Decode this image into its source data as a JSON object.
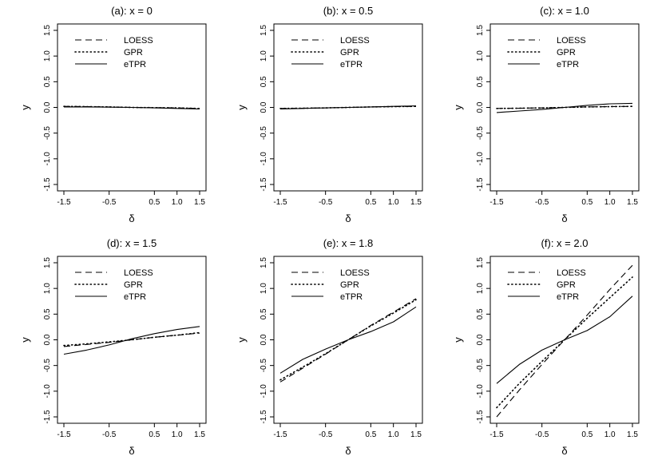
{
  "chart_data": [
    {
      "type": "line",
      "title": "(a): x = 0",
      "xlabel": "δ",
      "ylabel": "y",
      "xlim": [
        -1.5,
        1.5
      ],
      "ylim": [
        -1.5,
        1.5
      ],
      "x_ticks": [
        "-1.5",
        "-0.5",
        "0.5",
        "1.0",
        "1.5"
      ],
      "y_ticks": [
        "-1.5",
        "-1.0",
        "-0.5",
        "0.0",
        "0.5",
        "1.0",
        "1.5"
      ],
      "legend": [
        "LOESS",
        "GPR",
        "eTPR"
      ],
      "series": [
        {
          "name": "LOESS",
          "x": [
            -1.5,
            -1.0,
            -0.5,
            0.0,
            0.5,
            1.0,
            1.5
          ],
          "y": [
            0.02,
            0.015,
            0.01,
            0.0,
            -0.005,
            -0.01,
            -0.02
          ]
        },
        {
          "name": "GPR",
          "x": [
            -1.5,
            -1.0,
            -0.5,
            0.0,
            0.5,
            1.0,
            1.5
          ],
          "y": [
            0.02,
            0.015,
            0.01,
            0.0,
            -0.005,
            -0.01,
            -0.02
          ]
        },
        {
          "name": "eTPR",
          "x": [
            -1.5,
            -1.0,
            -0.5,
            0.0,
            0.5,
            1.0,
            1.5
          ],
          "y": [
            0.01,
            0.01,
            0.005,
            0.0,
            -0.01,
            -0.02,
            -0.03
          ]
        }
      ]
    },
    {
      "type": "line",
      "title": "(b): x = 0.5",
      "xlabel": "δ",
      "ylabel": "y",
      "xlim": [
        -1.5,
        1.5
      ],
      "ylim": [
        -1.5,
        1.5
      ],
      "x_ticks": [
        "-1.5",
        "-0.5",
        "0.5",
        "1.0",
        "1.5"
      ],
      "y_ticks": [
        "-1.5",
        "-1.0",
        "-0.5",
        "0.0",
        "0.5",
        "1.0",
        "1.5"
      ],
      "legend": [
        "LOESS",
        "GPR",
        "eTPR"
      ],
      "series": [
        {
          "name": "LOESS",
          "x": [
            -1.5,
            -1.0,
            -0.5,
            0.0,
            0.5,
            1.0,
            1.5
          ],
          "y": [
            -0.02,
            -0.015,
            -0.01,
            0.0,
            0.01,
            0.015,
            0.02
          ]
        },
        {
          "name": "GPR",
          "x": [
            -1.5,
            -1.0,
            -0.5,
            0.0,
            0.5,
            1.0,
            1.5
          ],
          "y": [
            -0.02,
            -0.015,
            -0.01,
            0.0,
            0.01,
            0.015,
            0.02
          ]
        },
        {
          "name": "eTPR",
          "x": [
            -1.5,
            -1.0,
            -0.5,
            0.0,
            0.5,
            1.0,
            1.5
          ],
          "y": [
            -0.03,
            -0.02,
            -0.01,
            0.0,
            0.01,
            0.02,
            0.03
          ]
        }
      ]
    },
    {
      "type": "line",
      "title": "(c): x = 1.0",
      "xlabel": "δ",
      "ylabel": "y",
      "xlim": [
        -1.5,
        1.5
      ],
      "ylim": [
        -1.5,
        1.5
      ],
      "x_ticks": [
        "-1.5",
        "-0.5",
        "0.5",
        "1.0",
        "1.5"
      ],
      "y_ticks": [
        "-1.5",
        "-1.0",
        "-0.5",
        "0.0",
        "0.5",
        "1.0",
        "1.5"
      ],
      "legend": [
        "LOESS",
        "GPR",
        "eTPR"
      ],
      "series": [
        {
          "name": "LOESS",
          "x": [
            -1.5,
            -1.0,
            -0.5,
            0.0,
            0.5,
            1.0,
            1.5
          ],
          "y": [
            -0.02,
            -0.015,
            -0.01,
            0.0,
            0.01,
            0.015,
            0.02
          ]
        },
        {
          "name": "GPR",
          "x": [
            -1.5,
            -1.0,
            -0.5,
            0.0,
            0.5,
            1.0,
            1.5
          ],
          "y": [
            -0.02,
            -0.015,
            -0.01,
            0.0,
            0.01,
            0.015,
            0.02
          ]
        },
        {
          "name": "eTPR",
          "x": [
            -1.5,
            -1.0,
            -0.5,
            0.0,
            0.5,
            1.0,
            1.5
          ],
          "y": [
            -0.1,
            -0.07,
            -0.04,
            0.0,
            0.04,
            0.07,
            0.08
          ]
        }
      ]
    },
    {
      "type": "line",
      "title": "(d): x = 1.5",
      "xlabel": "δ",
      "ylabel": "y",
      "xlim": [
        -1.5,
        1.5
      ],
      "ylim": [
        -1.5,
        1.5
      ],
      "x_ticks": [
        "-1.5",
        "-0.5",
        "0.5",
        "1.0",
        "1.5"
      ],
      "y_ticks": [
        "-1.5",
        "-1.0",
        "-0.5",
        "0.0",
        "0.5",
        "1.0",
        "1.5"
      ],
      "legend": [
        "LOESS",
        "GPR",
        "eTPR"
      ],
      "series": [
        {
          "name": "LOESS",
          "x": [
            -1.5,
            -1.0,
            -0.5,
            0.0,
            0.5,
            1.0,
            1.5
          ],
          "y": [
            -0.13,
            -0.09,
            -0.05,
            0.0,
            0.05,
            0.09,
            0.13
          ]
        },
        {
          "name": "GPR",
          "x": [
            -1.5,
            -1.0,
            -0.5,
            0.0,
            0.5,
            1.0,
            1.5
          ],
          "y": [
            -0.11,
            -0.08,
            -0.04,
            0.0,
            0.05,
            0.09,
            0.14
          ]
        },
        {
          "name": "eTPR",
          "x": [
            -1.5,
            -1.0,
            -0.5,
            0.0,
            0.5,
            1.0,
            1.5
          ],
          "y": [
            -0.28,
            -0.2,
            -0.1,
            0.02,
            0.12,
            0.2,
            0.26
          ]
        }
      ]
    },
    {
      "type": "line",
      "title": "(e): x = 1.8",
      "xlabel": "δ",
      "ylabel": "y",
      "xlim": [
        -1.5,
        1.5
      ],
      "ylim": [
        -1.5,
        1.5
      ],
      "x_ticks": [
        "-1.5",
        "-0.5",
        "0.5",
        "1.0",
        "1.5"
      ],
      "y_ticks": [
        "-1.5",
        "-1.0",
        "-0.5",
        "0.0",
        "0.5",
        "1.0",
        "1.5"
      ],
      "legend": [
        "LOESS",
        "GPR",
        "eTPR"
      ],
      "series": [
        {
          "name": "LOESS",
          "x": [
            -1.5,
            -1.0,
            -0.5,
            0.0,
            0.5,
            1.0,
            1.5
          ],
          "y": [
            -0.82,
            -0.55,
            -0.28,
            0.0,
            0.28,
            0.54,
            0.8
          ]
        },
        {
          "name": "GPR",
          "x": [
            -1.5,
            -1.0,
            -0.5,
            0.0,
            0.5,
            1.0,
            1.5
          ],
          "y": [
            -0.78,
            -0.53,
            -0.27,
            0.0,
            0.27,
            0.52,
            0.78
          ]
        },
        {
          "name": "eTPR",
          "x": [
            -1.5,
            -1.0,
            -0.5,
            0.0,
            0.5,
            1.0,
            1.5
          ],
          "y": [
            -0.65,
            -0.38,
            -0.18,
            0.0,
            0.16,
            0.35,
            0.64
          ]
        }
      ]
    },
    {
      "type": "line",
      "title": "(f): x = 2.0",
      "xlabel": "δ",
      "ylabel": "y",
      "xlim": [
        -1.5,
        1.5
      ],
      "ylim": [
        -1.5,
        1.5
      ],
      "x_ticks": [
        "-1.5",
        "-0.5",
        "0.5",
        "1.0",
        "1.5"
      ],
      "y_ticks": [
        "-1.5",
        "-1.0",
        "-0.5",
        "0.0",
        "0.5",
        "1.0",
        "1.5"
      ],
      "legend": [
        "LOESS",
        "GPR",
        "eTPR"
      ],
      "series": [
        {
          "name": "LOESS",
          "x": [
            -1.5,
            -1.0,
            -0.5,
            0.0,
            0.5,
            1.0,
            1.5
          ],
          "y": [
            -1.5,
            -0.98,
            -0.48,
            0.0,
            0.48,
            0.98,
            1.45
          ]
        },
        {
          "name": "GPR",
          "x": [
            -1.5,
            -1.0,
            -0.5,
            0.0,
            0.5,
            1.0,
            1.5
          ],
          "y": [
            -1.32,
            -0.85,
            -0.42,
            0.0,
            0.42,
            0.82,
            1.22
          ]
        },
        {
          "name": "eTPR",
          "x": [
            -1.5,
            -1.0,
            -0.5,
            0.0,
            0.5,
            1.0,
            1.5
          ],
          "y": [
            -0.85,
            -0.48,
            -0.2,
            0.0,
            0.18,
            0.45,
            0.85
          ]
        }
      ]
    }
  ]
}
